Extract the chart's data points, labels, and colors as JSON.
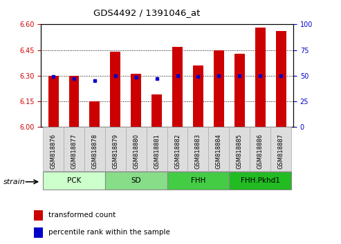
{
  "title": "GDS4492 / 1391046_at",
  "samples": [
    "GSM818876",
    "GSM818877",
    "GSM818878",
    "GSM818879",
    "GSM818880",
    "GSM818881",
    "GSM818882",
    "GSM818883",
    "GSM818884",
    "GSM818885",
    "GSM818886",
    "GSM818887"
  ],
  "red_values": [
    6.3,
    6.3,
    6.15,
    6.44,
    6.31,
    6.19,
    6.47,
    6.36,
    6.45,
    6.43,
    6.58,
    6.56
  ],
  "blue_values": [
    6.295,
    6.283,
    6.272,
    6.298,
    6.292,
    6.283,
    6.298,
    6.295,
    6.298,
    6.298,
    6.298,
    6.298
  ],
  "ylim_left": [
    6.0,
    6.6
  ],
  "ylim_right": [
    0,
    100
  ],
  "yticks_left": [
    6.0,
    6.15,
    6.3,
    6.45,
    6.6
  ],
  "yticks_right": [
    0,
    25,
    50,
    75,
    100
  ],
  "bar_bottom": 6.0,
  "bar_color": "#CC0000",
  "dot_color": "#0000CC",
  "groups": [
    {
      "label": "PCK",
      "start": 0,
      "end": 3,
      "color": "#ccffcc"
    },
    {
      "label": "SD",
      "start": 3,
      "end": 6,
      "color": "#88dd88"
    },
    {
      "label": "FHH",
      "start": 6,
      "end": 9,
      "color": "#44cc44"
    },
    {
      "label": "FHH.Pkhd1",
      "start": 9,
      "end": 12,
      "color": "#22bb22"
    }
  ],
  "strain_label": "strain",
  "legend_red": "transformed count",
  "legend_blue": "percentile rank within the sample",
  "tick_label_color_left": "#CC0000",
  "tick_label_color_right": "#0000CC",
  "bar_width": 0.5,
  "grid_yticks": [
    6.15,
    6.3,
    6.45
  ]
}
